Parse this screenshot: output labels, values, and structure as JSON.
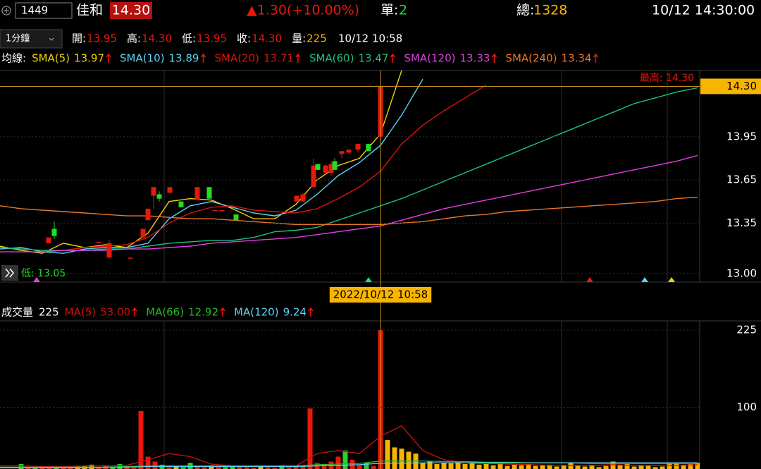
{
  "header": {
    "symbol": "1449",
    "name": "佳和",
    "price": "14.30",
    "change": "▲1.30(+10.00%)",
    "single": {
      "label": "單:",
      "value": "2"
    },
    "total": {
      "label": "總:",
      "value": "1328"
    },
    "time": "10/12 14:30:00"
  },
  "quote_bar": {
    "interval": "1分鐘",
    "items": [
      {
        "label": "開:",
        "value": "13.95"
      },
      {
        "label": "高:",
        "value": "14.30"
      },
      {
        "label": "低:",
        "value": "13.95"
      },
      {
        "label": "收:",
        "value": "14.30"
      },
      {
        "label": "量:",
        "value": "225"
      }
    ],
    "time": "10/12 10:58"
  },
  "chart_data": [
    {
      "type": "candlestick",
      "legend_title": "均線:",
      "xlim": [
        0,
        99.3
      ],
      "ylim": [
        12.94,
        14.41
      ],
      "yticks": [
        {
          "value": 13,
          "label": "13.00"
        },
        13.35,
        13.65,
        13.95
      ],
      "up_color": "#e8180c",
      "down_color": "#22dd22",
      "cursor": {
        "x": 54,
        "x_label": "2022/10/12 10:58",
        "value": 14.3,
        "label": "14.30"
      },
      "annotations": [
        "最高: 14.30",
        "低: 13.05"
      ],
      "candles": {
        "x": [
          6.9,
          7.7,
          14.0,
          15.5,
          18.5,
          20.3,
          21.0,
          21.8,
          22.6,
          24.1,
          25.7,
          28.0,
          29.7,
          30.5,
          31.5,
          33.5,
          42.1,
          43.0,
          44.5,
          45.1,
          46.2,
          47.0,
          47.5,
          48.5,
          49.5,
          50.8,
          52.3,
          54.0
        ],
        "open": [
          13.21,
          13.31,
          13.22,
          13.11,
          13.11,
          13.25,
          13.37,
          13.54,
          13.55,
          13.56,
          13.5,
          13.51,
          13.6,
          13.44,
          13.44,
          13.41,
          13.5,
          13.5,
          13.6,
          13.76,
          13.7,
          13.7,
          13.78,
          13.83,
          13.84,
          13.86,
          13.9,
          13.95
        ],
        "high": [
          13.25,
          13.36,
          13.22,
          13.23,
          13.11,
          13.31,
          13.45,
          13.6,
          13.57,
          13.6,
          13.5,
          13.6,
          13.6,
          13.44,
          13.44,
          13.41,
          13.54,
          13.56,
          13.8,
          13.76,
          13.76,
          13.78,
          13.8,
          13.85,
          13.86,
          13.9,
          13.9,
          14.3
        ],
        "low": [
          13.21,
          13.24,
          13.22,
          13.11,
          13.11,
          13.25,
          13.37,
          13.45,
          13.5,
          13.56,
          13.46,
          13.51,
          13.52,
          13.44,
          13.44,
          13.37,
          13.5,
          13.5,
          13.6,
          13.72,
          13.7,
          13.68,
          13.72,
          13.8,
          13.83,
          13.84,
          13.85,
          13.95
        ],
        "close": [
          13.25,
          13.26,
          13.22,
          13.21,
          13.11,
          13.31,
          13.45,
          13.6,
          13.52,
          13.6,
          13.46,
          13.6,
          13.52,
          13.44,
          13.44,
          13.37,
          13.54,
          13.55,
          13.75,
          13.72,
          13.75,
          13.76,
          13.72,
          13.85,
          13.86,
          13.9,
          13.85,
          14.3
        ]
      },
      "lines": {
        "x": [
          0,
          3,
          6,
          9,
          12,
          15,
          18,
          21,
          24,
          27,
          30,
          33,
          36,
          39,
          42,
          45,
          48,
          51,
          54,
          57,
          60,
          63,
          66,
          69,
          72,
          75,
          78,
          81,
          84,
          87,
          90,
          93,
          96,
          99
        ],
        "series": [
          {
            "name": "SMA(5)",
            "last": "13.97",
            "color": "#f5d200",
            "values": [
              13.19,
              13.16,
              13.14,
              13.21,
              13.18,
              13.2,
              13.18,
              13.28,
              13.5,
              13.52,
              13.51,
              13.45,
              13.38,
              13.38,
              13.48,
              13.65,
              13.75,
              13.8,
              13.97,
              14.41,
              null,
              null,
              null,
              null,
              null,
              null,
              null,
              null,
              null,
              null,
              null,
              null,
              null,
              null
            ]
          },
          {
            "name": "SMA(10)",
            "last": "13.89",
            "color": "#5fd3f3",
            "values": [
              13.17,
              13.18,
              13.15,
              13.14,
              13.17,
              13.18,
              13.18,
              13.21,
              13.38,
              13.47,
              13.5,
              13.46,
              13.42,
              13.4,
              13.44,
              13.55,
              13.68,
              13.77,
              13.89,
              14.1,
              14.35,
              null,
              null,
              null,
              null,
              null,
              null,
              null,
              null,
              null,
              null,
              null,
              null,
              null
            ]
          },
          {
            "name": "SMA(20)",
            "last": "13.71",
            "color": "#d8150c",
            "values": [
              13.18,
              13.17,
              13.16,
              13.16,
              13.18,
              13.19,
              13.2,
              13.25,
              13.35,
              13.42,
              13.46,
              13.47,
              13.44,
              13.43,
              13.42,
              13.45,
              13.52,
              13.6,
              13.71,
              13.9,
              14.03,
              14.13,
              14.22,
              14.31,
              null,
              null,
              null,
              null,
              null,
              null,
              null,
              null,
              null,
              null
            ]
          },
          {
            "name": "SMA(60)",
            "last": "13.47",
            "color": "#19c37d",
            "values": [
              13.18,
              13.17,
              13.16,
              13.16,
              13.16,
              13.17,
              13.17,
              13.19,
              13.21,
              13.22,
              13.23,
              13.23,
              13.25,
              13.29,
              13.3,
              13.32,
              13.37,
              13.42,
              13.47,
              13.52,
              13.58,
              13.64,
              13.7,
              13.76,
              13.82,
              13.88,
              13.94,
              14.0,
              14.06,
              14.12,
              14.18,
              14.22,
              14.26,
              14.29
            ]
          },
          {
            "name": "SMA(120)",
            "last": "13.33",
            "color": "#e040e0",
            "values": [
              13.15,
              13.15,
              13.15,
              13.16,
              13.16,
              13.16,
              13.17,
              13.17,
              13.18,
              13.19,
              13.21,
              13.22,
              13.23,
              13.24,
              13.25,
              13.27,
              13.29,
              13.31,
              13.33,
              13.37,
              13.41,
              13.45,
              13.48,
              13.51,
              13.54,
              13.57,
              13.6,
              13.63,
              13.66,
              13.69,
              13.72,
              13.75,
              13.78,
              13.82
            ]
          },
          {
            "name": "SMA(240)",
            "last": "13.34",
            "color": "#e8782a",
            "values": [
              13.47,
              13.45,
              13.44,
              13.43,
              13.42,
              13.41,
              13.4,
              13.4,
              13.39,
              13.38,
              13.38,
              13.37,
              13.36,
              13.35,
              13.34,
              13.34,
              13.34,
              13.34,
              13.34,
              13.35,
              13.36,
              13.38,
              13.4,
              13.41,
              13.43,
              13.44,
              13.45,
              13.46,
              13.47,
              13.48,
              13.49,
              13.5,
              13.52,
              13.53
            ]
          }
        ]
      }
    },
    {
      "type": "bar",
      "title": "成交量",
      "title_value": "225",
      "xlim": [
        0,
        99.3
      ],
      "ylim": [
        0,
        240
      ],
      "yticks": [
        100,
        225
      ],
      "x": [
        3,
        4,
        5,
        6,
        7,
        8,
        9,
        10,
        11,
        12,
        13,
        14,
        15,
        16,
        17,
        18,
        19,
        20,
        21,
        22,
        23,
        24,
        25,
        26,
        27,
        28,
        29,
        30,
        31,
        32,
        33,
        34,
        35,
        36,
        37,
        38,
        39,
        40,
        41,
        42,
        43,
        44,
        45,
        46,
        47,
        48,
        49,
        50,
        51,
        52,
        53,
        54,
        55,
        56,
        57,
        58,
        59,
        60,
        61,
        62,
        63,
        64,
        65,
        66,
        67,
        68,
        69,
        70,
        71,
        72,
        73,
        74,
        75,
        76,
        77,
        78,
        79,
        80,
        81,
        82,
        83,
        84,
        85,
        86,
        87,
        88,
        89,
        90,
        91,
        92,
        93,
        94,
        95,
        96,
        97,
        98,
        99
      ],
      "values": [
        8,
        3,
        2,
        4,
        3,
        2,
        3,
        2,
        4,
        5,
        7,
        3,
        6,
        2,
        8,
        3,
        2,
        94,
        20,
        12,
        7,
        3,
        4,
        3,
        10,
        5,
        3,
        6,
        4,
        3,
        5,
        4,
        3,
        2,
        4,
        3,
        2,
        6,
        3,
        4,
        5,
        98,
        10,
        8,
        12,
        20,
        30,
        15,
        6,
        10,
        5,
        225,
        47,
        35,
        33,
        28,
        25,
        10,
        12,
        8,
        10,
        9,
        12,
        8,
        10,
        7,
        8,
        6,
        9,
        5,
        7,
        6,
        8,
        5,
        6,
        7,
        4,
        6,
        10,
        5,
        4,
        6,
        3,
        5,
        12,
        6,
        8,
        4,
        6,
        5,
        3,
        4,
        9,
        10,
        6,
        8,
        10
      ],
      "colors": [
        "#2ecc2e",
        "#e8180c",
        "#2ecc2e",
        "#e8180c",
        "#e8180c",
        "#2ecc2e",
        "#e8180c",
        "#e8180c",
        "#f7b500",
        "#f7b500",
        "#f7b500",
        "#e8180c",
        "#e8180c",
        "#2ecc2e",
        "#2ecc2e",
        "#e8180c",
        "#e8180c",
        "#e8180c",
        "#e8180c",
        "#e8180c",
        "#2ecc2e",
        "#e8180c",
        "#f7b500",
        "#2ecc2e",
        "#2ecc2e",
        "#e8180c",
        "#e8180c",
        "#f7b500",
        "#e8180c",
        "#2ecc2e",
        "#2ecc2e",
        "#e8180c",
        "#e8180c",
        "#e8180c",
        "#f7b500",
        "#e8180c",
        "#e8180c",
        "#2ecc2e",
        "#e8180c",
        "#e8180c",
        "#e8180c",
        "#e8180c",
        "#e8180c",
        "#e8180c",
        "#e8180c",
        "#e8180c",
        "#2ecc2e",
        "#e8180c",
        "#e8180c",
        "#2ecc2e",
        "#e8180c",
        "#e8180c",
        "#f7b500",
        "#f7b500",
        "#f7b500",
        "#f7b500",
        "#f7b500",
        "#f7b500",
        "#f7b500",
        "#f7b500",
        "#f7b500",
        "#f7b500",
        "#f7b500",
        "#f7b500",
        "#f7b500",
        "#f7b500",
        "#f7b500",
        "#f7b500",
        "#f7b500",
        "#f7b500",
        "#f7b500",
        "#f7b500",
        "#f7b500",
        "#f7b500",
        "#f7b500",
        "#f7b500",
        "#f7b500",
        "#f7b500",
        "#f7b500",
        "#f7b500",
        "#f7b500",
        "#f7b500",
        "#f7b500",
        "#f7b500",
        "#f7b500",
        "#f7b500",
        "#f7b500",
        "#f7b500",
        "#f7b500",
        "#f7b500",
        "#f7b500",
        "#f7b500",
        "#f7b500",
        "#f7b500",
        "#f7b500",
        "#f7b500",
        "#f7b500"
      ],
      "lines": {
        "x": [
          0,
          3,
          6,
          9,
          12,
          15,
          18,
          21,
          24,
          27,
          30,
          33,
          36,
          39,
          42,
          45,
          48,
          51,
          54,
          57,
          60,
          63,
          66,
          69,
          72,
          75,
          78,
          81,
          84,
          87,
          90,
          93,
          96,
          99
        ],
        "series": [
          {
            "name": "MA(5)",
            "last": "53.00",
            "color": "#c8140c",
            "values": [
              5,
              5,
              4,
              4,
              5,
              5,
              6,
              15,
              25,
              20,
              8,
              5,
              4,
              4,
              5,
              25,
              30,
              25,
              53,
              70,
              30,
              15,
              10,
              9,
              8,
              7,
              6,
              6,
              6,
              7,
              6,
              6,
              6,
              7
            ]
          },
          {
            "name": "MA(66)",
            "last": "12.92",
            "color": "#22bb22",
            "values": [
              3,
              3,
              3,
              3,
              3,
              3,
              4,
              5,
              5,
              5,
              5,
              5,
              5,
              5,
              5,
              7,
              8,
              9,
              12.92,
              13,
              13,
              12,
              12,
              11,
              11,
              10,
              10,
              10,
              9,
              9,
              9,
              9,
              9,
              9
            ]
          },
          {
            "name": "MA(120)",
            "last": "9.24",
            "color": "#5fd3f3",
            "values": [
              2,
              2,
              2,
              2,
              2,
              3,
              3,
              4,
              4,
              4,
              4,
              4,
              4,
              4,
              4,
              5,
              6,
              7,
              9.24,
              9.5,
              9.8,
              9.9,
              10,
              10,
              10,
              10,
              10,
              10,
              10,
              10,
              10,
              10,
              10,
              10
            ]
          }
        ]
      }
    }
  ]
}
